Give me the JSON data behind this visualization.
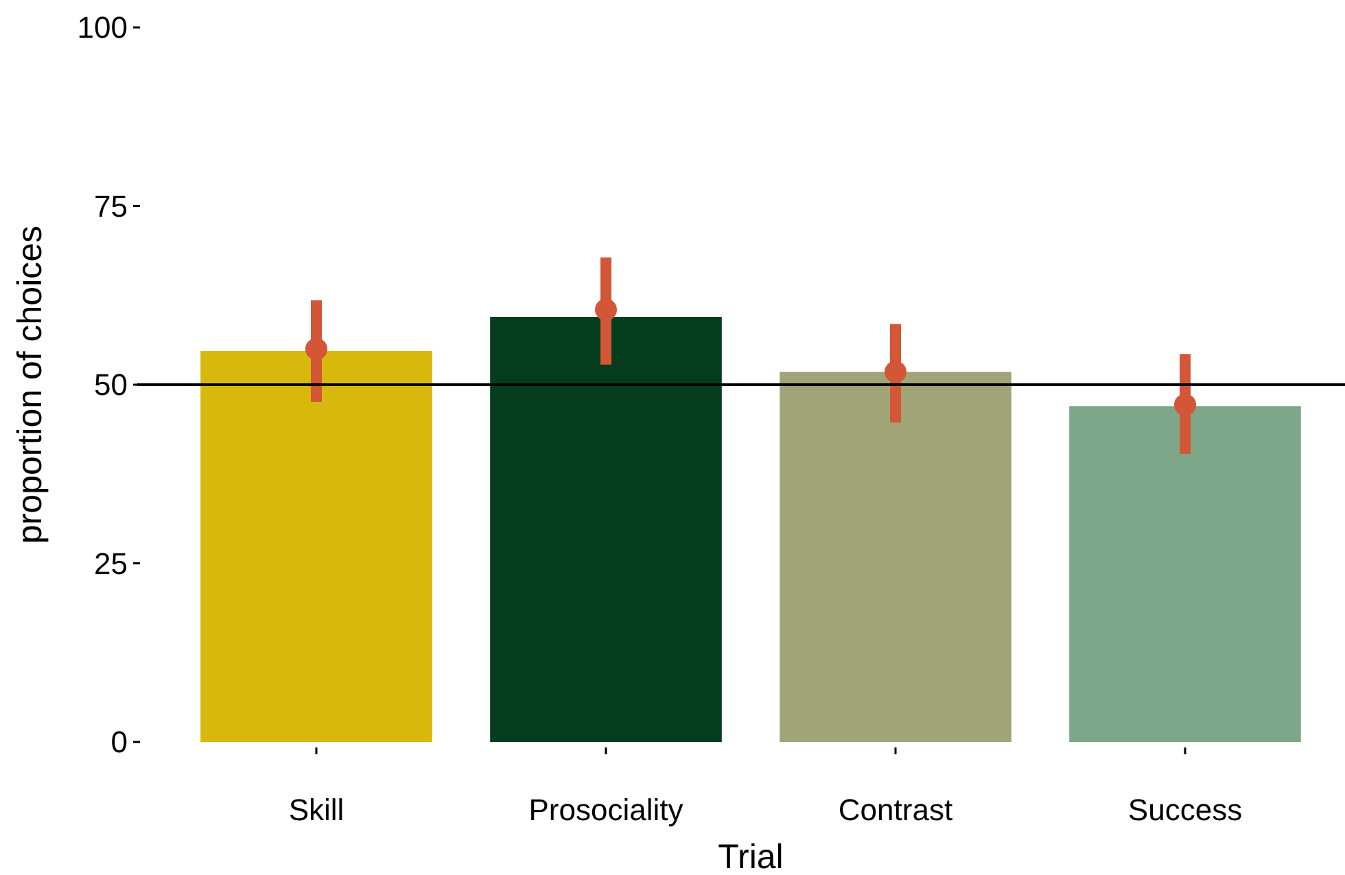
{
  "chart_data": {
    "type": "bar",
    "xlabel": "Trial",
    "ylabel": "proportion of choices",
    "categories": [
      "Skill",
      "Prosociality",
      "Contrast",
      "Success"
    ],
    "ylim": [
      0,
      100
    ],
    "yticks": [
      0,
      25,
      50,
      75,
      100
    ],
    "grid": false,
    "series": [
      {
        "colors": [
          "#d9b80d",
          "#033d1e",
          "#a1a477",
          "#7ea78a"
        ],
        "values": [
          54.7,
          59.5,
          51.8,
          47.0
        ]
      },
      {
        "type": "scatter",
        "color": "#d35637",
        "marker": "circle",
        "x": [
          "Skill",
          "Prosociality",
          "Contrast",
          "Success"
        ],
        "values": [
          55.0,
          60.5,
          51.8,
          47.2
        ],
        "errors": [
          [
            47.6,
            61.8
          ],
          [
            52.8,
            67.8
          ],
          [
            44.7,
            58.5
          ],
          [
            40.3,
            54.3
          ]
        ]
      }
    ],
    "ref_lines": [
      {
        "axis": "y",
        "value": 50,
        "color": "#000000"
      }
    ]
  }
}
